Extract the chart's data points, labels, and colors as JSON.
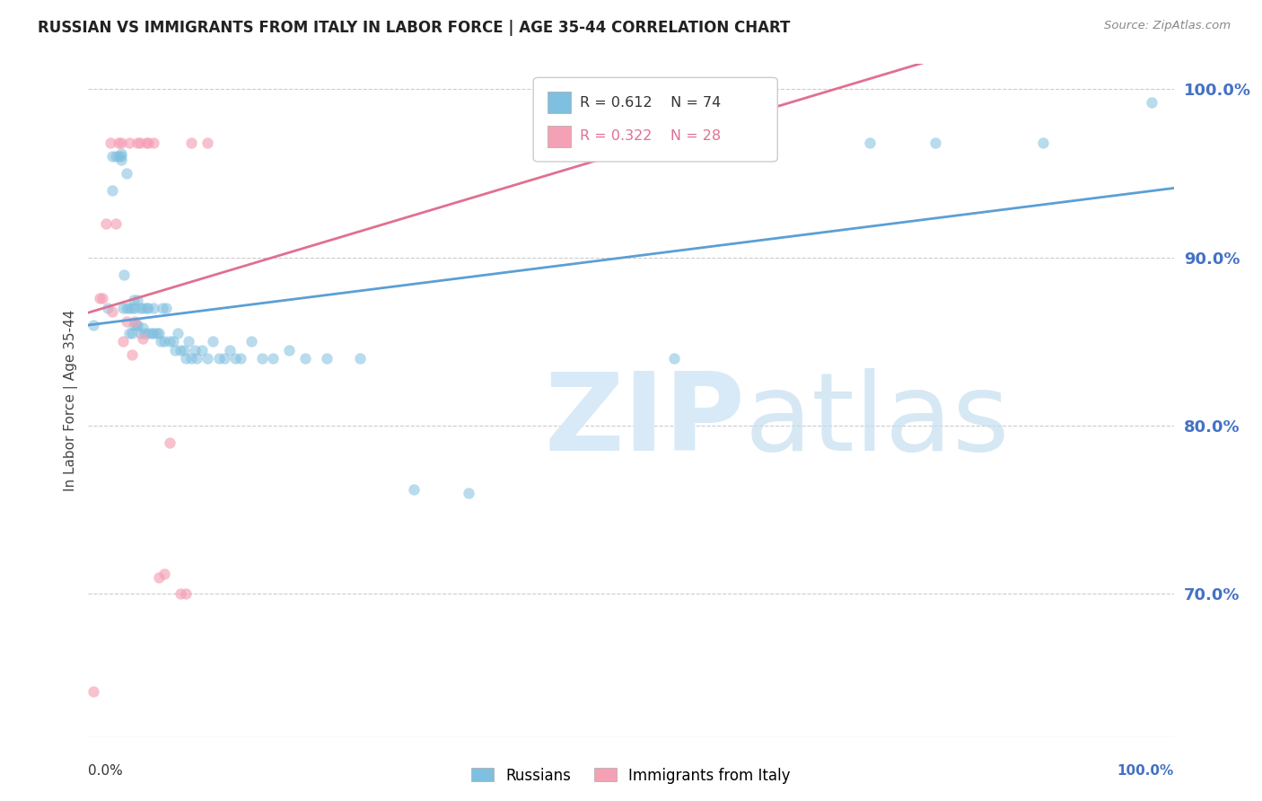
{
  "title": "RUSSIAN VS IMMIGRANTS FROM ITALY IN LABOR FORCE | AGE 35-44 CORRELATION CHART",
  "source": "Source: ZipAtlas.com",
  "ylabel": "In Labor Force | Age 35-44",
  "ytick_labels": [
    "100.0%",
    "90.0%",
    "80.0%",
    "70.0%"
  ],
  "ytick_values": [
    1.0,
    0.9,
    0.8,
    0.7
  ],
  "xlim": [
    0.0,
    1.0
  ],
  "ylim": [
    0.615,
    1.015
  ],
  "blue_color": "#7fbfdf",
  "pink_color": "#f4a0b5",
  "line_blue": "#5b9fd4",
  "line_pink": "#e07090",
  "watermark_zip": "ZIP",
  "watermark_atlas": "atlas",
  "russians_x": [
    0.005,
    0.018,
    0.022,
    0.022,
    0.025,
    0.028,
    0.03,
    0.03,
    0.03,
    0.032,
    0.033,
    0.035,
    0.035,
    0.038,
    0.038,
    0.04,
    0.04,
    0.042,
    0.042,
    0.043,
    0.044,
    0.045,
    0.045,
    0.048,
    0.048,
    0.05,
    0.05,
    0.052,
    0.053,
    0.055,
    0.055,
    0.058,
    0.06,
    0.06,
    0.063,
    0.065,
    0.067,
    0.068,
    0.07,
    0.072,
    0.075,
    0.078,
    0.08,
    0.082,
    0.085,
    0.088,
    0.09,
    0.092,
    0.095,
    0.098,
    0.1,
    0.105,
    0.11,
    0.115,
    0.12,
    0.125,
    0.13,
    0.135,
    0.14,
    0.15,
    0.16,
    0.17,
    0.185,
    0.2,
    0.22,
    0.25,
    0.3,
    0.35,
    0.54,
    0.63,
    0.72,
    0.78,
    0.88,
    0.98
  ],
  "russians_y": [
    0.86,
    0.87,
    0.94,
    0.96,
    0.96,
    0.96,
    0.958,
    0.96,
    0.962,
    0.87,
    0.89,
    0.87,
    0.95,
    0.855,
    0.87,
    0.855,
    0.87,
    0.86,
    0.875,
    0.87,
    0.86,
    0.86,
    0.875,
    0.855,
    0.87,
    0.858,
    0.87,
    0.855,
    0.87,
    0.855,
    0.87,
    0.855,
    0.855,
    0.87,
    0.855,
    0.855,
    0.85,
    0.87,
    0.85,
    0.87,
    0.85,
    0.85,
    0.845,
    0.855,
    0.845,
    0.845,
    0.84,
    0.85,
    0.84,
    0.845,
    0.84,
    0.845,
    0.84,
    0.85,
    0.84,
    0.84,
    0.845,
    0.84,
    0.84,
    0.85,
    0.84,
    0.84,
    0.845,
    0.84,
    0.84,
    0.84,
    0.762,
    0.76,
    0.84,
    0.968,
    0.968,
    0.968,
    0.968,
    0.992
  ],
  "italy_x": [
    0.005,
    0.01,
    0.013,
    0.016,
    0.02,
    0.022,
    0.025,
    0.028,
    0.03,
    0.032,
    0.035,
    0.038,
    0.04,
    0.043,
    0.045,
    0.048,
    0.05,
    0.053,
    0.055,
    0.06,
    0.065,
    0.07,
    0.075,
    0.085,
    0.09,
    0.095,
    0.11,
    0.5
  ],
  "italy_y": [
    0.642,
    0.876,
    0.876,
    0.92,
    0.968,
    0.868,
    0.92,
    0.968,
    0.968,
    0.85,
    0.862,
    0.968,
    0.842,
    0.862,
    0.968,
    0.968,
    0.852,
    0.968,
    0.968,
    0.968,
    0.71,
    0.712,
    0.79,
    0.7,
    0.7,
    0.968,
    0.968,
    0.992
  ],
  "grid_color": "#cccccc",
  "axis_line_color": "#aaaaaa",
  "right_tick_color": "#4472c4",
  "title_color": "#222222",
  "ylabel_color": "#444444"
}
